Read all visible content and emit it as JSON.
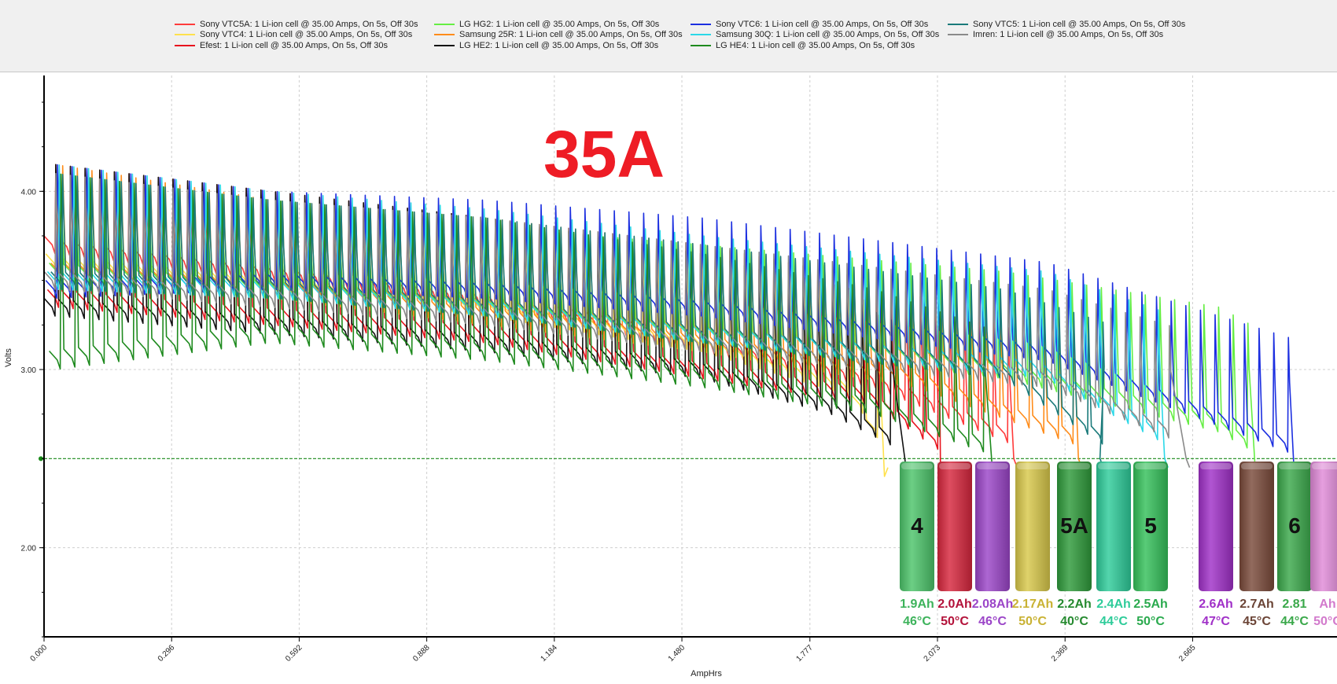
{
  "legend": [
    {
      "text": "Sony VTC5A: 1 Li-ion cell @ 35.00 Amps, On 5s, Off 30s",
      "color": "#ff3b3b"
    },
    {
      "text": "Sony VTC4: 1 Li-ion cell @ 35.00 Amps, On 5s, Off 30s",
      "color": "#ffe14d"
    },
    {
      "text": "Efest: 1 Li-ion cell @ 35.00 Amps, On 5s, Off 30s",
      "color": "#e8141e"
    },
    {
      "text": "LG HG2: 1 Li-ion cell @ 35.00 Amps, On 5s, Off 30s",
      "color": "#66ee44"
    },
    {
      "text": "Samsung 25R: 1 Li-ion cell @ 35.00 Amps, On 5s, Off 30s",
      "color": "#ff8c1a"
    },
    {
      "text": "LG HE2: 1 Li-ion cell @ 35.00 Amps, On 5s, Off 30s",
      "color": "#111111"
    },
    {
      "text": "Sony VTC6: 1 Li-ion cell @ 35.00 Amps, On 5s, Off 30s",
      "color": "#1c2fe0"
    },
    {
      "text": "Samsung 30Q: 1 Li-ion cell @ 35.00 Amps, On 5s, Off 30s",
      "color": "#2bd8e8"
    },
    {
      "text": "LG HE4: 1 Li-ion cell @ 35.00 Amps, On 5s, Off 30s",
      "color": "#1e8a1e"
    },
    {
      "text": "Sony VTC5: 1 Li-ion cell @ 35.00 Amps, On 5s, Off 30s",
      "color": "#1a7a7a"
    },
    {
      "text": "Imren: 1 Li-ion cell @ 35.00 Amps, On 5s, Off 30s",
      "color": "#8a8a8a"
    }
  ],
  "chart_data": {
    "type": "line",
    "title": "35A",
    "title_color": "#ee1c25",
    "xlabel": "AmpHrs",
    "ylabel": "Volts",
    "xlim": [
      0.0,
      3.0
    ],
    "ylim": [
      1.5,
      4.65
    ],
    "x_ticks": [
      "0.000",
      "0.296",
      "0.592",
      "0.888",
      "1.184",
      "1.480",
      "1.777",
      "2.073",
      "2.369",
      "2.665"
    ],
    "x_tick_values": [
      0.0,
      0.296,
      0.592,
      0.888,
      1.184,
      1.48,
      1.777,
      2.073,
      2.369,
      2.665
    ],
    "y_ticks": [
      "2.00",
      "3.00",
      "4.00"
    ],
    "y_tick_values": [
      2.0,
      3.0,
      4.0
    ],
    "cutoff_voltage": 2.5,
    "grid": true,
    "legend_position": "top",
    "series": [
      {
        "name": "Sony VTC5A",
        "color": "#ff3b3b",
        "x": [
          0.0,
          0.5,
          1.0,
          1.5,
          1.9,
          2.25
        ],
        "y": [
          3.7,
          3.55,
          3.4,
          3.15,
          2.95,
          2.6
        ],
        "peak": [
          4.15,
          4.0,
          3.85,
          3.7,
          3.5,
          3.2
        ]
      },
      {
        "name": "Sony VTC4",
        "color": "#ffe14d",
        "x": [
          0.0,
          0.5,
          1.0,
          1.5,
          1.85,
          1.95
        ],
        "y": [
          3.6,
          3.5,
          3.35,
          3.15,
          2.9,
          2.5
        ],
        "peak": [
          4.1,
          3.95,
          3.8,
          3.65,
          3.45,
          3.2
        ]
      },
      {
        "name": "Efest",
        "color": "#e8141e",
        "x": [
          0.0,
          0.5,
          1.0,
          1.5,
          1.9,
          2.08
        ],
        "y": [
          3.4,
          3.3,
          3.2,
          3.0,
          2.85,
          2.55
        ],
        "peak": [
          4.1,
          3.95,
          3.8,
          3.65,
          3.45,
          3.2
        ]
      },
      {
        "name": "LG HG2",
        "color": "#66ee44",
        "x": [
          0.0,
          0.5,
          1.0,
          1.5,
          2.2,
          2.7,
          2.81
        ],
        "y": [
          3.55,
          3.45,
          3.35,
          3.2,
          3.0,
          2.7,
          2.55
        ],
        "peak": [
          4.1,
          3.95,
          3.8,
          3.7,
          3.55,
          3.35,
          3.2
        ]
      },
      {
        "name": "Samsung 25R",
        "color": "#ff8c1a",
        "x": [
          0.0,
          0.5,
          1.0,
          1.5,
          2.0,
          2.4
        ],
        "y": [
          3.55,
          3.45,
          3.3,
          3.15,
          2.95,
          2.6
        ],
        "peak": [
          4.15,
          3.95,
          3.85,
          3.7,
          3.5,
          3.25
        ]
      },
      {
        "name": "LG HE2",
        "color": "#111111",
        "x": [
          0.0,
          0.5,
          1.0,
          1.5,
          1.8,
          2.0
        ],
        "y": [
          3.35,
          3.25,
          3.15,
          3.0,
          2.8,
          2.55
        ],
        "peak": [
          4.15,
          4.0,
          3.85,
          3.65,
          3.45,
          3.2
        ]
      },
      {
        "name": "Sony VTC6",
        "color": "#1c2fe0",
        "x": [
          0.0,
          0.5,
          1.0,
          1.5,
          2.3,
          2.9
        ],
        "y": [
          3.45,
          3.5,
          3.45,
          3.35,
          3.1,
          2.55
        ],
        "peak": [
          4.15,
          4.0,
          3.95,
          3.85,
          3.6,
          3.15
        ]
      },
      {
        "name": "Samsung 30Q",
        "color": "#2bd8e8",
        "x": [
          0.0,
          0.5,
          1.0,
          1.5,
          2.3,
          2.6
        ],
        "y": [
          3.5,
          3.45,
          3.35,
          3.2,
          3.0,
          2.6
        ],
        "peak": [
          4.15,
          4.0,
          3.9,
          3.75,
          3.55,
          3.3
        ]
      },
      {
        "name": "LG HE4",
        "color": "#1e8a1e",
        "x": [
          0.0,
          0.5,
          1.0,
          1.5,
          1.9,
          2.2
        ],
        "y": [
          3.05,
          3.2,
          3.1,
          2.95,
          2.8,
          2.55
        ],
        "peak": [
          4.1,
          3.95,
          3.85,
          3.65,
          3.45,
          3.2
        ]
      },
      {
        "name": "Sony VTC5",
        "color": "#1a7a7a",
        "x": [
          0.0,
          0.5,
          1.0,
          1.5,
          2.2,
          2.45
        ],
        "y": [
          3.5,
          3.45,
          3.35,
          3.2,
          3.0,
          2.6
        ],
        "peak": [
          4.1,
          3.95,
          3.85,
          3.7,
          3.45,
          3.25
        ]
      },
      {
        "name": "Imren",
        "color": "#8a8a8a",
        "x": [
          0.0,
          0.5,
          1.0,
          1.5,
          2.3,
          2.65
        ],
        "y": [
          3.5,
          3.4,
          3.3,
          3.15,
          2.95,
          2.6
        ],
        "peak": [
          4.1,
          3.95,
          3.85,
          3.7,
          3.45,
          3.2
        ]
      }
    ]
  },
  "cells": [
    {
      "label": "4",
      "color": "#4cc46a",
      "capacity": "1.9Ah",
      "temp": "46°C",
      "text_color": "#3db35b"
    },
    {
      "label": "",
      "color": "#d7263d",
      "capacity": "2.0Ah",
      "temp": "50°C",
      "text_color": "#b3123a"
    },
    {
      "label": "",
      "color": "#9b45c8",
      "capacity": "2.08Ah",
      "temp": "46°C",
      "text_color": "#9b45c8"
    },
    {
      "label": "",
      "color": "#d8c84a",
      "capacity": "2.17Ah",
      "temp": "50°C",
      "text_color": "#c9b234"
    },
    {
      "label": "5A",
      "color": "#2e9a3a",
      "capacity": "2.2Ah",
      "temp": "40°C",
      "text_color": "#268a30"
    },
    {
      "label": "",
      "color": "#2ecc9a",
      "capacity": "2.4Ah",
      "temp": "44°C",
      "text_color": "#2ecc9a"
    },
    {
      "label": "5",
      "color": "#34c05a",
      "capacity": "2.5Ah",
      "temp": "50°C",
      "text_color": "#2aaa4e"
    },
    {
      "label": "",
      "color": "#a030c8",
      "capacity": "2.6Ah",
      "temp": "47°C",
      "text_color": "#a030c8"
    },
    {
      "label": "",
      "color": "#7a4a3a",
      "capacity": "2.7Ah",
      "temp": "45°C",
      "text_color": "#6b4436"
    },
    {
      "label": "6",
      "color": "#3aa84a",
      "capacity": "2.81",
      "temp": "44°C",
      "text_color": "#3aa84a"
    },
    {
      "label": "",
      "color": "#e08ad8",
      "capacity": "Ah",
      "temp": "50°C",
      "text_color": "#d27acc"
    }
  ]
}
